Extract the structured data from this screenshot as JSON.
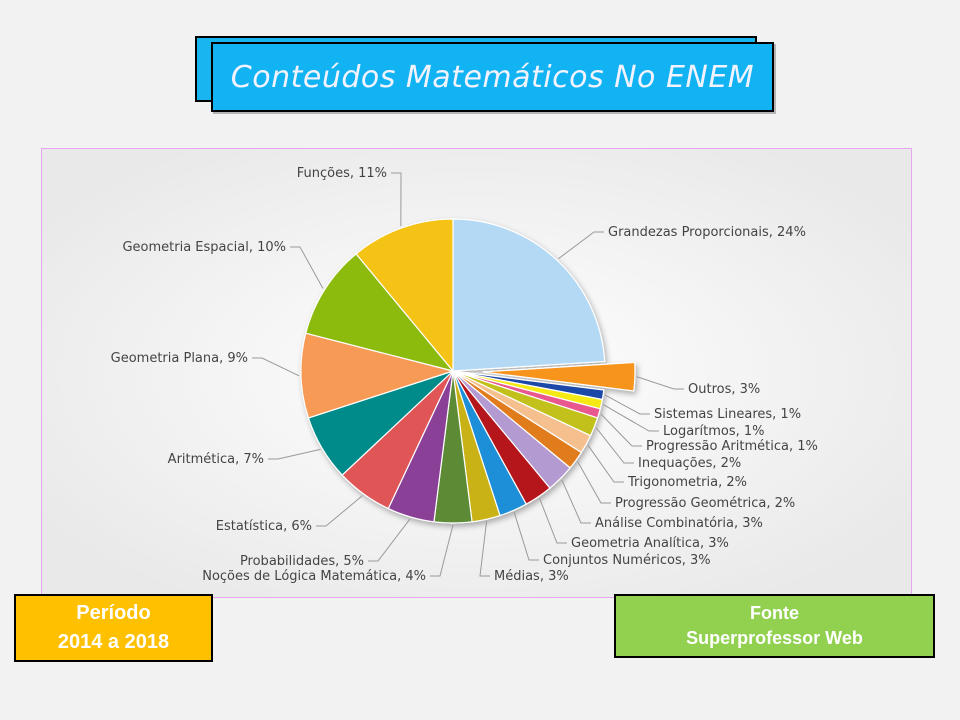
{
  "header": {
    "title": "Conteúdos Matemáticos No ENEM"
  },
  "periodo": {
    "line1": "Período",
    "line2": "2014 a 2018"
  },
  "fonte": {
    "line1": "Fonte",
    "line2": "Superprofessor Web"
  },
  "chart_data": {
    "type": "pie",
    "title": "",
    "unit": "%",
    "slices": [
      {
        "label": "Grandezas Proporcionais, 24%",
        "name": "Grandezas Proporcionais",
        "value": 24,
        "color": "#b3d9f5"
      },
      {
        "label": "Outros, 3%",
        "name": "Outros",
        "value": 3,
        "color": "#f7941d",
        "exploded": true
      },
      {
        "label": "Sistemas Lineares, 1%",
        "name": "Sistemas Lineares",
        "value": 1,
        "color": "#1e4aa8"
      },
      {
        "label": "Logarítmos, 1%",
        "name": "Logarítmos",
        "value": 1,
        "color": "#f5ea14"
      },
      {
        "label": "Progressão Aritmética, 1%",
        "name": "Progressão Aritmética",
        "value": 1,
        "color": "#e8588f"
      },
      {
        "label": "Inequações, 2%",
        "name": "Inequações",
        "value": 2,
        "color": "#c2c11a"
      },
      {
        "label": "Trigonometria, 2%",
        "name": "Trigonometria",
        "value": 2,
        "color": "#f5c08e"
      },
      {
        "label": "Progressão Geométrica, 2%",
        "name": "Progressão Geométrica",
        "value": 2,
        "color": "#e07b1e"
      },
      {
        "label": "Análise Combinatória, 3%",
        "name": "Análise Combinatória",
        "value": 3,
        "color": "#b39ad0"
      },
      {
        "label": "Geometria Analítica, 3%",
        "name": "Geometria Analítica",
        "value": 3,
        "color": "#b5121b"
      },
      {
        "label": "Conjuntos Numéricos, 3%",
        "name": "Conjuntos Numéricos",
        "value": 3,
        "color": "#1d8fd8"
      },
      {
        "label": "Médias, 3%",
        "name": "Médias",
        "value": 3,
        "color": "#c9b214"
      },
      {
        "label": "Noções de Lógica Matemática, 4%",
        "name": "Noções de Lógica Matemática",
        "value": 4,
        "color": "#5b8a35"
      },
      {
        "label": "Probabilidades, 5%",
        "name": "Probabilidades",
        "value": 5,
        "color": "#8a3f97"
      },
      {
        "label": "Estatística, 6%",
        "name": "Estatística",
        "value": 6,
        "color": "#e05454"
      },
      {
        "label": "Aritmética, 7%",
        "name": "Aritmética",
        "value": 7,
        "color": "#008b8b"
      },
      {
        "label": "Geometria Plana, 9%",
        "name": "Geometria Plana",
        "value": 9,
        "color": "#f79a56"
      },
      {
        "label": "Geometria Espacial, 10%",
        "name": "Geometria Espacial",
        "value": 10,
        "color": "#8cba0e"
      },
      {
        "label": "Funções, 11%",
        "name": "Funções",
        "value": 11,
        "color": "#f5c218"
      }
    ]
  }
}
